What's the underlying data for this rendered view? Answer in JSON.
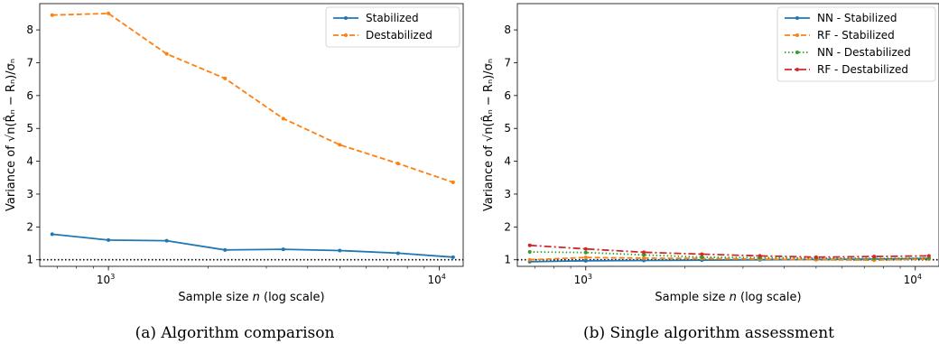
{
  "chart_data": [
    {
      "type": "line",
      "xscale": "log",
      "xlim": [
        620,
        11800
      ],
      "ylim": [
        0.8,
        8.8
      ],
      "x": [
        676,
        1000,
        1500,
        2250,
        3375,
        5000,
        7500,
        11000
      ],
      "xticks": [
        {
          "value": 1000,
          "base": "10",
          "exp": "3"
        },
        {
          "value": 10000,
          "base": "10",
          "exp": "4"
        }
      ],
      "yticks": [
        1,
        2,
        3,
        4,
        5,
        6,
        7,
        8
      ],
      "xlabel": {
        "pre": "Sample size ",
        "var": "n",
        "post": " (log scale)"
      },
      "ylabel": "Variance of √n(R̂ₙ − Rₙ)/σₙ",
      "reference_line": 1,
      "legend_position": "top-right",
      "series": [
        {
          "name": "Stabilized",
          "color": "#1f77b4",
          "style": "solid",
          "values": [
            1.78,
            1.6,
            1.58,
            1.3,
            1.32,
            1.28,
            1.2,
            1.08
          ]
        },
        {
          "name": "Destabilized",
          "color": "#ff7f0e",
          "style": "dashed",
          "values": [
            8.45,
            8.5,
            7.27,
            6.52,
            5.3,
            4.5,
            3.93,
            3.36
          ]
        }
      ],
      "caption": "(a) Algorithm comparison"
    },
    {
      "type": "line",
      "xscale": "log",
      "xlim": [
        620,
        11800
      ],
      "ylim": [
        0.8,
        8.8
      ],
      "x": [
        676,
        1000,
        1500,
        2250,
        3375,
        5000,
        7500,
        11000
      ],
      "xticks": [
        {
          "value": 1000,
          "base": "10",
          "exp": "3"
        },
        {
          "value": 10000,
          "base": "10",
          "exp": "4"
        }
      ],
      "yticks": [
        1,
        2,
        3,
        4,
        5,
        6,
        7,
        8
      ],
      "xlabel": {
        "pre": "Sample size ",
        "var": "n",
        "post": " (log scale)"
      },
      "ylabel": "Variance of √n(R̂ₙ − Rₙ)/σₙ",
      "reference_line": 1,
      "legend_position": "top-right",
      "series": [
        {
          "name": "NN - Stabilized",
          "color": "#1f77b4",
          "style": "solid",
          "values": [
            0.94,
            0.97,
            0.98,
            0.99,
            1.0,
            1.01,
            1.02,
            1.04
          ]
        },
        {
          "name": "RF - Stabilized",
          "color": "#ff7f0e",
          "style": "dashed",
          "values": [
            1.0,
            1.07,
            1.05,
            1.04,
            1.02,
            1.0,
            0.99,
            1.02
          ]
        },
        {
          "name": "NN - Destabilized",
          "color": "#2ca02c",
          "style": "dotted",
          "values": [
            1.24,
            1.22,
            1.15,
            1.08,
            1.06,
            1.05,
            1.04,
            1.05
          ]
        },
        {
          "name": "RF - Destabilized",
          "color": "#d62728",
          "style": "dashdot",
          "values": [
            1.44,
            1.33,
            1.23,
            1.17,
            1.12,
            1.08,
            1.1,
            1.12
          ]
        }
      ],
      "caption": "(b) Single algorithm assessment"
    }
  ]
}
